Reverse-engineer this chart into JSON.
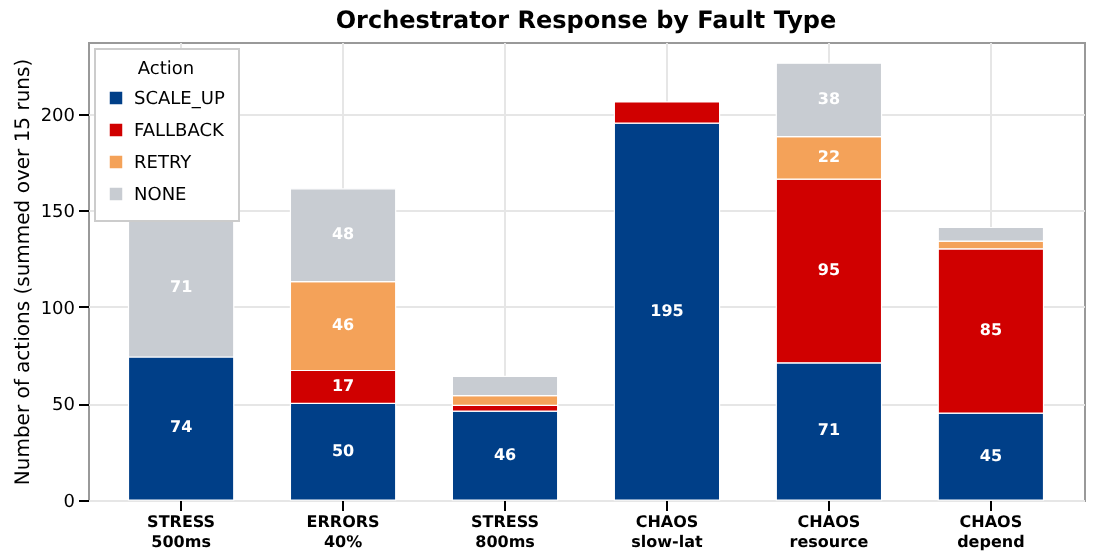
{
  "chart_data": {
    "type": "bar",
    "title": "Orchestrator Response by Fault Type",
    "ylabel": "Number of actions (summed over 15 runs)",
    "legend_title": "Action",
    "categories": [
      "STRESS\n500ms",
      "ERRORS\n40%",
      "STRESS\n800ms",
      "CHAOS\nslow-lat",
      "CHAOS\nresource",
      "CHAOS\ndepend"
    ],
    "series": [
      {
        "name": "SCALE_UP",
        "color": "#003f88",
        "values": [
          74,
          50,
          46,
          195,
          71,
          45
        ],
        "value_labels": [
          "74",
          "50",
          "46",
          "195",
          "71",
          "45"
        ]
      },
      {
        "name": "FALLBACK",
        "color": "#d00000",
        "values": [
          0,
          17,
          3,
          11,
          95,
          85
        ],
        "value_labels": [
          null,
          "17",
          null,
          null,
          "95",
          "85"
        ]
      },
      {
        "name": "RETRY",
        "color": "#f4a259",
        "values": [
          0,
          46,
          5,
          0,
          22,
          4
        ],
        "value_labels": [
          null,
          "46",
          null,
          null,
          "22",
          null
        ]
      },
      {
        "name": "NONE",
        "color": "#c8ccd2",
        "values": [
          71,
          48,
          10,
          0,
          38,
          7
        ],
        "value_labels": [
          "71",
          "48",
          null,
          null,
          "38",
          null
        ]
      }
    ],
    "stacked": true,
    "ylim": [
      0,
      237
    ],
    "yticks": [
      0,
      50,
      100,
      150,
      200
    ],
    "grid": true,
    "legend": "top left"
  }
}
